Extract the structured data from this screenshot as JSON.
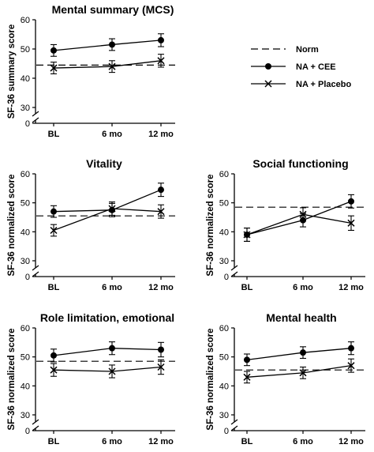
{
  "legend": {
    "items": [
      {
        "key": "norm",
        "label": "Norm",
        "style": "dashed"
      },
      {
        "key": "cee",
        "label": "NA + CEE",
        "marker": "circle"
      },
      {
        "key": "placebo",
        "label": "NA + Placebo",
        "marker": "x"
      }
    ]
  },
  "colors": {
    "ink": "#000000",
    "background": "#ffffff"
  },
  "chart_data": [
    {
      "type": "line",
      "title": "Mental summary (MCS)",
      "ylabel": "SF-36 summary score",
      "categories": [
        "BL",
        "6 mo",
        "12 mo"
      ],
      "yticks": [
        0,
        30,
        40,
        50,
        60
      ],
      "ylim": [
        30,
        60
      ],
      "axis_break": true,
      "norm": 44.5,
      "series": [
        {
          "name": "NA + CEE",
          "marker": "circle",
          "values": [
            49.5,
            51.5,
            53.0
          ],
          "err": [
            2.0,
            2.0,
            2.2
          ]
        },
        {
          "name": "NA + Placebo",
          "marker": "x",
          "values": [
            43.5,
            44.0,
            46.0
          ],
          "err": [
            2.0,
            2.0,
            2.2
          ]
        }
      ]
    },
    {
      "type": "line",
      "title": "Vitality",
      "ylabel": "SF-36 normalized score",
      "categories": [
        "BL",
        "6 mo",
        "12 mo"
      ],
      "yticks": [
        0,
        30,
        40,
        50,
        60
      ],
      "ylim": [
        30,
        60
      ],
      "axis_break": true,
      "norm": 45.5,
      "series": [
        {
          "name": "NA + CEE",
          "marker": "circle",
          "values": [
            47.0,
            47.5,
            54.5
          ],
          "err": [
            2.0,
            2.3,
            2.3
          ]
        },
        {
          "name": "NA + Placebo",
          "marker": "x",
          "values": [
            40.5,
            48.0,
            47.0
          ],
          "err": [
            2.0,
            2.3,
            2.3
          ]
        }
      ]
    },
    {
      "type": "line",
      "title": "Social functioning",
      "ylabel": "SF-36 normalized score",
      "categories": [
        "BL",
        "6 mo",
        "12 mo"
      ],
      "yticks": [
        0,
        30,
        40,
        50,
        60
      ],
      "ylim": [
        30,
        60
      ],
      "axis_break": true,
      "norm": 48.5,
      "series": [
        {
          "name": "NA + CEE",
          "marker": "circle",
          "values": [
            39.0,
            44.0,
            50.5
          ],
          "err": [
            2.3,
            2.3,
            2.3
          ]
        },
        {
          "name": "NA + Placebo",
          "marker": "x",
          "values": [
            39.0,
            46.0,
            43.0
          ],
          "err": [
            2.3,
            2.3,
            2.5
          ]
        }
      ]
    },
    {
      "type": "line",
      "title": "Role limitation, emotional",
      "ylabel": "SF-36 normalized score",
      "categories": [
        "BL",
        "6 mo",
        "12 mo"
      ],
      "yticks": [
        0,
        30,
        40,
        50,
        60
      ],
      "ylim": [
        30,
        60
      ],
      "axis_break": true,
      "norm": 48.5,
      "series": [
        {
          "name": "NA + CEE",
          "marker": "circle",
          "values": [
            50.5,
            53.0,
            52.5
          ],
          "err": [
            2.2,
            2.2,
            2.5
          ]
        },
        {
          "name": "NA + Placebo",
          "marker": "x",
          "values": [
            45.5,
            45.0,
            46.5
          ],
          "err": [
            2.2,
            2.2,
            2.5
          ]
        }
      ]
    },
    {
      "type": "line",
      "title": "Mental health",
      "ylabel": "SF-36 normalized score",
      "categories": [
        "BL",
        "6 mo",
        "12 mo"
      ],
      "yticks": [
        0,
        30,
        40,
        50,
        60
      ],
      "ylim": [
        30,
        60
      ],
      "axis_break": true,
      "norm": 45.5,
      "series": [
        {
          "name": "NA + CEE",
          "marker": "circle",
          "values": [
            49.0,
            51.5,
            53.0
          ],
          "err": [
            2.0,
            2.0,
            2.2
          ]
        },
        {
          "name": "NA + Placebo",
          "marker": "x",
          "values": [
            43.0,
            44.5,
            47.0
          ],
          "err": [
            2.0,
            2.0,
            2.3
          ]
        }
      ]
    }
  ]
}
